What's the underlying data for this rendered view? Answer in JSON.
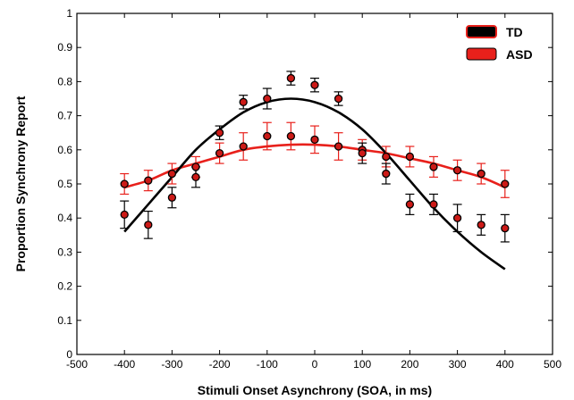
{
  "chart_data": {
    "type": "scatter",
    "title": "",
    "xlabel": "Stimuli Onset Asynchrony (SOA, in ms)",
    "ylabel": "Proportion Synchrony Report",
    "xlim": [
      -500,
      500
    ],
    "ylim": [
      0,
      1
    ],
    "xticks": [
      -500,
      -400,
      -300,
      -200,
      -100,
      0,
      100,
      200,
      300,
      400,
      500
    ],
    "yticks": [
      0,
      0.1,
      0.2,
      0.3,
      0.4,
      0.5,
      0.6,
      0.7,
      0.8,
      0.9,
      1
    ],
    "xtick_labels": [
      "-500",
      "-400",
      "-300",
      "-200",
      "-100",
      "0",
      "100",
      "200",
      "300",
      "400",
      "500"
    ],
    "ytick_labels": [
      "0",
      "0.1",
      "0.2",
      "0.3",
      "0.4",
      "0.5",
      "0.6",
      "0.7",
      "0.8",
      "0.9",
      "1"
    ],
    "grid": false,
    "legend_position": "top-right",
    "x": [
      -400,
      -350,
      -300,
      -250,
      -200,
      -150,
      -100,
      -50,
      0,
      50,
      100,
      150,
      200,
      250,
      300,
      350,
      400
    ],
    "series": [
      {
        "name": "TD",
        "color": "#000000",
        "values": [
          0.41,
          0.38,
          0.46,
          0.52,
          0.65,
          0.74,
          0.75,
          0.81,
          0.79,
          0.75,
          0.59,
          0.53,
          0.44,
          0.44,
          0.4,
          0.38,
          0.37
        ],
        "error": [
          0.04,
          0.04,
          0.03,
          0.03,
          0.02,
          0.02,
          0.03,
          0.02,
          0.02,
          0.02,
          0.03,
          0.03,
          0.03,
          0.03,
          0.04,
          0.03,
          0.04
        ],
        "fit": [
          0.36,
          0.44,
          0.52,
          0.6,
          0.66,
          0.71,
          0.74,
          0.75,
          0.74,
          0.71,
          0.66,
          0.59,
          0.51,
          0.43,
          0.36,
          0.3,
          0.25
        ]
      },
      {
        "name": "ASD",
        "color": "#e8201b",
        "values": [
          0.5,
          0.51,
          0.53,
          0.55,
          0.59,
          0.61,
          0.64,
          0.64,
          0.63,
          0.61,
          0.6,
          0.58,
          0.58,
          0.55,
          0.54,
          0.53,
          0.5
        ],
        "error": [
          0.03,
          0.03,
          0.03,
          0.03,
          0.03,
          0.04,
          0.04,
          0.04,
          0.04,
          0.04,
          0.03,
          0.03,
          0.03,
          0.03,
          0.03,
          0.03,
          0.04
        ],
        "fit": [
          0.49,
          0.51,
          0.54,
          0.56,
          0.58,
          0.6,
          0.61,
          0.615,
          0.615,
          0.61,
          0.6,
          0.59,
          0.575,
          0.56,
          0.54,
          0.52,
          0.49
        ]
      }
    ]
  }
}
